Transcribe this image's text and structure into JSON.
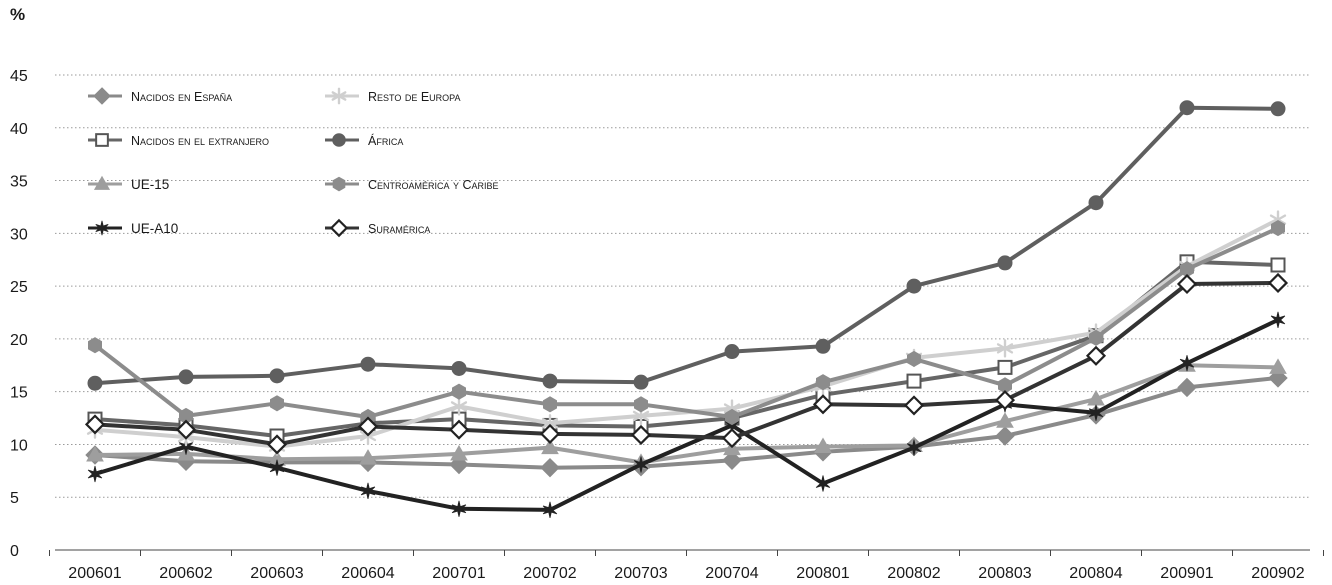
{
  "chart_data": {
    "type": "line",
    "ylabel": "%",
    "ylim": [
      0,
      45
    ],
    "yticks": [
      0,
      5,
      10,
      15,
      20,
      25,
      30,
      35,
      40,
      45
    ],
    "grid": "horizontal dotted",
    "legend_placement": "top-left",
    "categories": [
      "200601",
      "200602",
      "200603",
      "200604",
      "200701",
      "200702",
      "200703",
      "200704",
      "200801",
      "200802",
      "200803",
      "200804",
      "200901",
      "200902"
    ],
    "series": [
      {
        "name": "Nacidos en España",
        "marker": "diamond",
        "color": "#8a8a8a",
        "fill": true,
        "values": [
          9.0,
          8.4,
          8.3,
          8.3,
          8.1,
          7.8,
          7.9,
          8.5,
          9.3,
          9.8,
          10.8,
          12.8,
          15.4,
          16.3
        ]
      },
      {
        "name": "Nacidos en el extranjero",
        "marker": "square-open",
        "color": "#666666",
        "fill": false,
        "values": [
          12.4,
          11.8,
          10.8,
          12.0,
          12.4,
          11.8,
          11.7,
          12.5,
          14.7,
          16.0,
          17.3,
          20.3,
          27.3,
          27.0
        ]
      },
      {
        "name": "UE-15",
        "marker": "triangle",
        "color": "#9e9e9e",
        "fill": true,
        "values": [
          9.0,
          9.1,
          8.6,
          8.7,
          9.1,
          9.7,
          8.3,
          9.6,
          9.8,
          9.9,
          12.2,
          14.3,
          17.5,
          17.3
        ]
      },
      {
        "name": "UE-A10",
        "marker": "star",
        "color": "#222222",
        "fill": true,
        "values": [
          7.2,
          9.8,
          7.8,
          5.6,
          3.9,
          3.8,
          8.1,
          11.8,
          6.3,
          9.7,
          13.8,
          13.0,
          17.7,
          21.8
        ]
      },
      {
        "name": "Resto de Europa",
        "marker": "asterisk",
        "color": "#cfcfcf",
        "fill": true,
        "values": [
          11.4,
          10.7,
          9.8,
          10.8,
          13.6,
          12.0,
          12.7,
          13.4,
          15.5,
          18.2,
          19.1,
          20.6,
          26.9,
          31.3
        ]
      },
      {
        "name": "África",
        "marker": "circle",
        "color": "#5f5f5f",
        "fill": true,
        "values": [
          15.8,
          16.4,
          16.5,
          17.6,
          17.2,
          16.0,
          15.9,
          18.8,
          19.3,
          25.0,
          27.2,
          32.9,
          41.9,
          41.8
        ]
      },
      {
        "name": "Centroamérica y Caribe",
        "marker": "hexagon",
        "color": "#8c8c8c",
        "fill": true,
        "values": [
          19.4,
          12.7,
          13.9,
          12.6,
          15.0,
          13.8,
          13.8,
          12.6,
          15.9,
          18.1,
          15.6,
          20.1,
          26.6,
          30.5
        ]
      },
      {
        "name": "Suramérica",
        "marker": "diamond-open",
        "color": "#333333",
        "fill": false,
        "values": [
          11.9,
          11.4,
          10.0,
          11.7,
          11.4,
          11.0,
          10.9,
          10.6,
          13.8,
          13.7,
          14.2,
          18.4,
          25.2,
          25.3
        ]
      }
    ],
    "legend_order": [
      0,
      4,
      1,
      5,
      2,
      6,
      3,
      7
    ]
  }
}
